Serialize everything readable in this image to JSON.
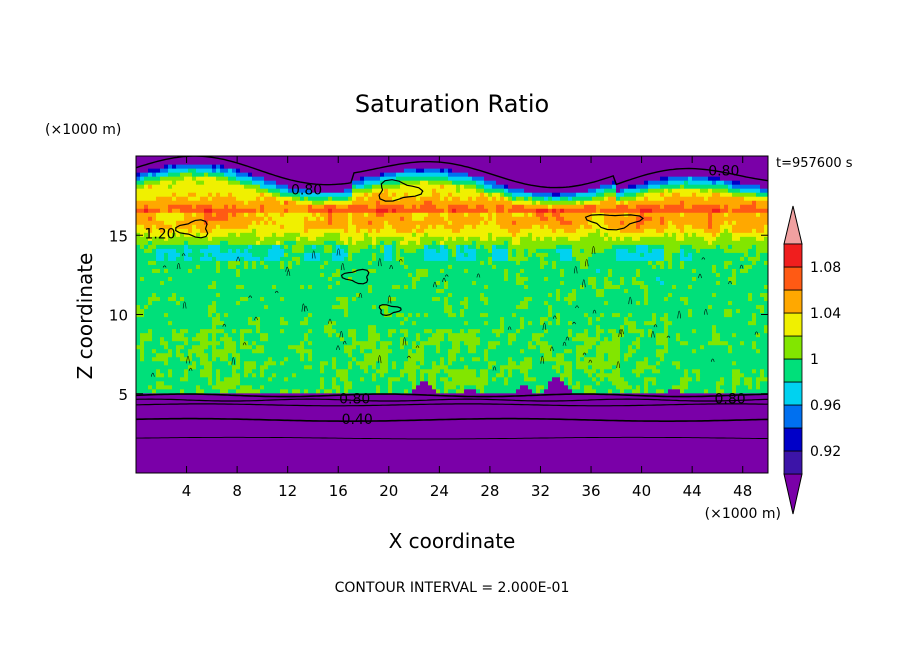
{
  "chart_data": {
    "type": "heatmap",
    "title": "Saturation Ratio",
    "xlabel": "X coordinate",
    "ylabel": "Z coordinate",
    "x_unit": "(×1000 m)",
    "y_unit": "(×1000 m)",
    "time_label": "t=957600 s",
    "footer": "CONTOUR INTERVAL = 2.000E-01",
    "xlim": [
      0,
      50
    ],
    "ylim": [
      0,
      20
    ],
    "x_ticks": [
      4,
      8,
      12,
      16,
      20,
      24,
      28,
      32,
      36,
      40,
      44,
      48
    ],
    "x_tick_labels": [
      "4",
      "8",
      "12",
      "16",
      "20",
      "24",
      "28",
      "32",
      "36",
      "40",
      "44",
      "48"
    ],
    "y_ticks": [
      5,
      10,
      15
    ],
    "y_tick_labels": [
      "5",
      "10",
      "15"
    ],
    "colorbar": {
      "levels": [
        0.9,
        0.92,
        0.94,
        0.96,
        0.98,
        1.0,
        1.02,
        1.04,
        1.06,
        1.08,
        1.1
      ],
      "labeled": [
        0.92,
        0.96,
        1.0,
        1.04,
        1.08
      ],
      "labels": [
        "0.92",
        "0.96",
        "1",
        "1.04",
        "1.08"
      ],
      "colors": [
        "#7a00a8",
        "#3c14a8",
        "#0000c8",
        "#0070f0",
        "#00d2f0",
        "#00e07a",
        "#82e600",
        "#f0f000",
        "#ffa800",
        "#ff5a14",
        "#f01e1e",
        "#f0a0a0"
      ]
    },
    "contour_labels": [
      {
        "text": "0.80",
        "x": 13.5,
        "z": 17.9
      },
      {
        "text": "0.80",
        "x": 46.5,
        "z": 19.1
      },
      {
        "text": "0.80",
        "x": 17.3,
        "z": 4.7
      },
      {
        "text": "0.80",
        "x": 47.0,
        "z": 4.7
      },
      {
        "text": "0.40",
        "x": 17.5,
        "z": 3.4
      },
      {
        "text": "1.20",
        "x": 1.9,
        "z": 15.1
      }
    ]
  }
}
